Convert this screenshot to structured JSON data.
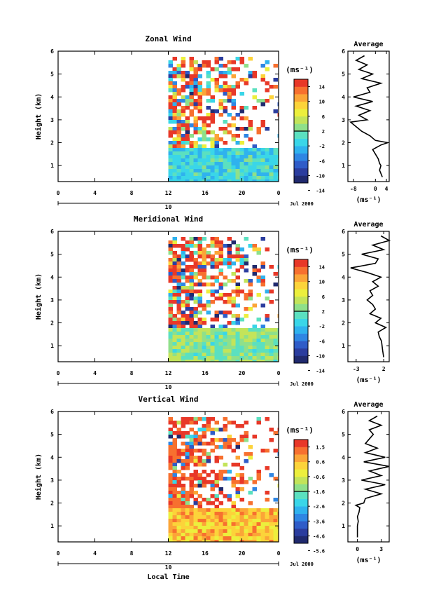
{
  "chart_data": [
    {
      "type": "heatmap",
      "title": "Zonal Wind",
      "ylabel": "Height (km)",
      "x_ticks": [
        "0",
        "4",
        "8",
        "12",
        "16",
        "20",
        "0"
      ],
      "y_ticks": [
        "1",
        "2",
        "3",
        "4",
        "5",
        "6"
      ],
      "ylim": [
        0.3,
        6.0
      ],
      "xlim": [
        0,
        24
      ],
      "data_start_hour": 12,
      "date_label": "10",
      "month_label": "Jul 2000",
      "colorbar_unit": "(ms⁻¹)",
      "colorbar_ticks": [
        "14",
        "10",
        "6",
        "2",
        "-2",
        "-6",
        "-10",
        "-14"
      ],
      "colorbar_range": [
        -16,
        16
      ],
      "low_layer_top_km": 1.9,
      "low_layer_mean": -3,
      "profile": {
        "title": "Average",
        "x_ticks": [
          "-8",
          "0",
          "4"
        ],
        "xlim": [
          -10,
          5
        ],
        "xlabel": "(ms⁻¹)",
        "heights": [
          0.5,
          0.8,
          1.0,
          1.1,
          1.3,
          1.5,
          1.7,
          1.9,
          2.0,
          2.1,
          2.3,
          2.5,
          2.7,
          2.9,
          3.0,
          3.2,
          3.4,
          3.6,
          3.8,
          4.0,
          4.2,
          4.4,
          4.6,
          4.8,
          5.0,
          5.2,
          5.4,
          5.6,
          5.8
        ],
        "values": [
          2.5,
          1.5,
          2,
          1.5,
          1,
          0,
          -1,
          2,
          4.5,
          0,
          -2,
          -5,
          -7,
          -9,
          -3,
          -6,
          -2,
          -7,
          -1,
          -8,
          -2,
          -3,
          2,
          -5,
          -1,
          -6,
          -3,
          -7,
          -4
        ]
      }
    },
    {
      "type": "heatmap",
      "title": "Meridional Wind",
      "ylabel": "Height (km)",
      "x_ticks": [
        "0",
        "4",
        "8",
        "12",
        "16",
        "20",
        "0"
      ],
      "y_ticks": [
        "1",
        "2",
        "3",
        "4",
        "5",
        "6"
      ],
      "ylim": [
        0.3,
        6.0
      ],
      "xlim": [
        0,
        24
      ],
      "data_start_hour": 12,
      "date_label": "10",
      "month_label": "Jul 2000",
      "colorbar_unit": "(ms⁻¹)",
      "colorbar_ticks": [
        "14",
        "10",
        "6",
        "2",
        "-2",
        "-6",
        "-10",
        "-14"
      ],
      "colorbar_range": [
        -16,
        16
      ],
      "low_layer_top_km": 1.9,
      "low_layer_mean": 1,
      "profile": {
        "title": "Average",
        "x_ticks": [
          "-3",
          "2"
        ],
        "xlim": [
          -4.5,
          3
        ],
        "xlabel": "(ms⁻¹)",
        "heights": [
          0.5,
          0.8,
          1.0,
          1.2,
          1.4,
          1.6,
          1.8,
          2.0,
          2.2,
          2.4,
          2.6,
          2.8,
          3.0,
          3.2,
          3.4,
          3.6,
          3.8,
          4.0,
          4.2,
          4.4,
          4.6,
          4.8,
          5.0,
          5.2,
          5.4,
          5.6,
          5.8
        ],
        "values": [
          2,
          1.8,
          1.7,
          1.6,
          1.2,
          1.0,
          2.4,
          0.5,
          1.5,
          -0.5,
          0.5,
          0,
          -1,
          0,
          -0.5,
          1,
          0,
          1.5,
          -1,
          -4,
          0.5,
          1,
          -2,
          2,
          0,
          3,
          1.5
        ]
      }
    },
    {
      "type": "heatmap",
      "title": "Vertical Wind",
      "xlabel": "Local Time",
      "ylabel": "Height (km)",
      "x_ticks": [
        "0",
        "4",
        "8",
        "12",
        "16",
        "20",
        "0"
      ],
      "y_ticks": [
        "1",
        "2",
        "3",
        "4",
        "5",
        "6"
      ],
      "ylim": [
        0.3,
        6.0
      ],
      "xlim": [
        0,
        24
      ],
      "data_start_hour": 12,
      "date_label": "10",
      "month_label": "Jul 2000",
      "colorbar_unit": "(ms⁻¹)",
      "colorbar_ticks": [
        "1.5",
        "0.6",
        "-0.6",
        "-1.6",
        "-2.6",
        "-3.6",
        "-4.6",
        "-5.6"
      ],
      "colorbar_range": [
        -6,
        2
      ],
      "low_layer_top_km": 1.8,
      "low_layer_mean": 0.2,
      "profile": {
        "title": "Average",
        "x_ticks": [
          "0",
          "3"
        ],
        "xlim": [
          -1.2,
          4
        ],
        "xlabel": "(ms⁻¹)",
        "heights": [
          0.5,
          0.8,
          1.0,
          1.2,
          1.4,
          1.6,
          1.8,
          1.9,
          2.0,
          2.2,
          2.4,
          2.6,
          2.8,
          3.0,
          3.2,
          3.4,
          3.6,
          3.8,
          4.0,
          4.2,
          4.4,
          4.6,
          4.8,
          5.0,
          5.2,
          5.4,
          5.6,
          5.8
        ],
        "values": [
          0,
          0,
          0,
          0.1,
          0,
          0.2,
          0.3,
          -0.2,
          0.8,
          1,
          3,
          1,
          3.5,
          0.5,
          3,
          1.5,
          4,
          0.8,
          3.5,
          1,
          2.5,
          1,
          1.5,
          2,
          1.5,
          3,
          1.5,
          2.5
        ]
      }
    }
  ]
}
